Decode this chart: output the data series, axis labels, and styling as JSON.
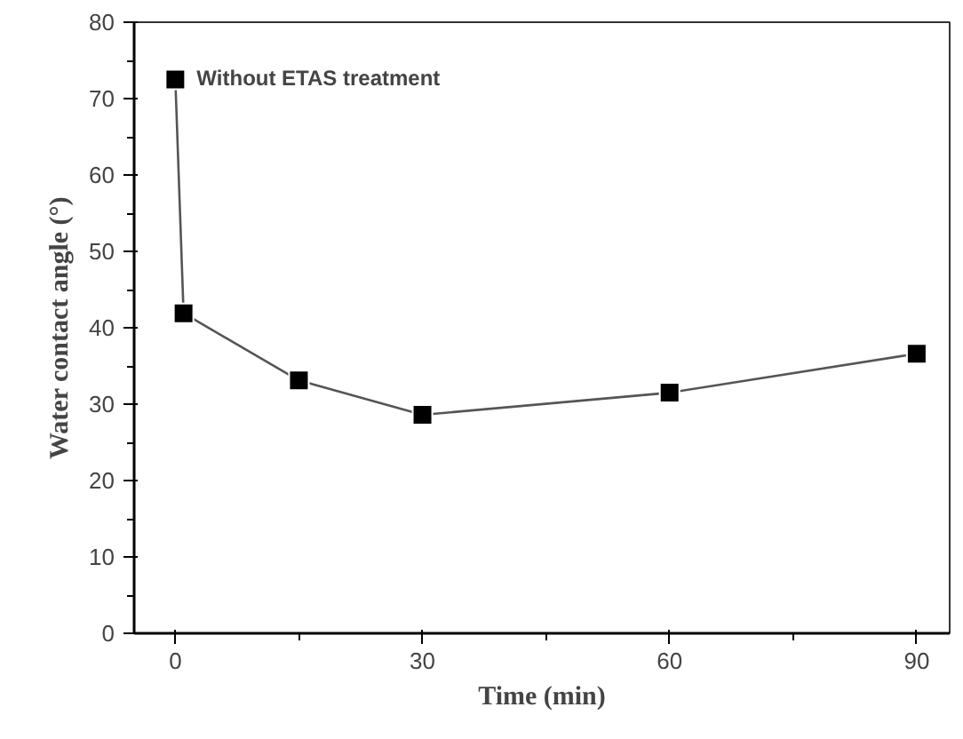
{
  "chart_data": {
    "type": "line",
    "xlabel": "Time (min)",
    "ylabel": "Water contact angle (°)",
    "x": [
      0,
      1,
      15,
      30,
      60,
      90
    ],
    "series": [
      {
        "color": "#000000",
        "values": [
          72.5,
          41.9,
          33.1,
          28.6,
          31.5,
          36.6
        ]
      }
    ],
    "annotations": [
      {
        "text": "Without ETAS treatment",
        "x": 0,
        "y": 72.5
      }
    ],
    "xlim": [
      -5,
      94
    ],
    "xticks": [
      0,
      30,
      60,
      90
    ],
    "ylim": [
      0,
      80
    ],
    "yticks": [
      0,
      10,
      20,
      30,
      40,
      50,
      60,
      70,
      80
    ],
    "marker": "square",
    "line_style": "solid",
    "grid": false
  }
}
